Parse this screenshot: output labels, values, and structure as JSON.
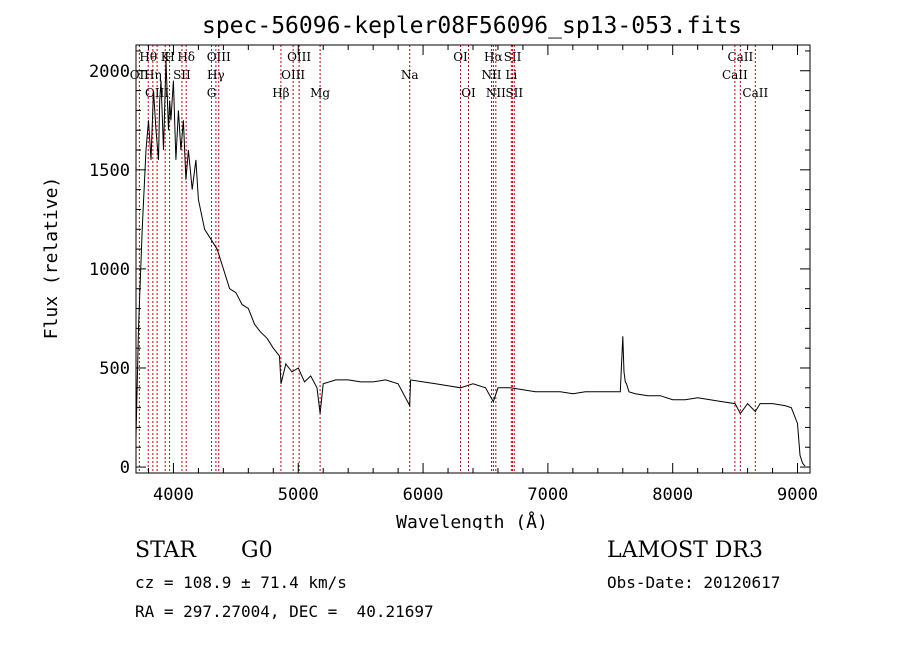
{
  "chart_data": {
    "type": "line",
    "title": "spec-56096-kepler08F56096_sp13-053.fits",
    "xlabel": "Wavelength (Å)",
    "ylabel": "Flux (relative)",
    "xlim": [
      3700,
      9100
    ],
    "ylim": [
      -30,
      2130
    ],
    "xticks": [
      4000,
      5000,
      6000,
      7000,
      8000,
      9000
    ],
    "yticks": [
      0,
      500,
      1000,
      1500,
      2000
    ],
    "line_color": "#000000",
    "marker_color": "#cc0000",
    "series": [
      {
        "name": "flux",
        "x": [
          3700,
          3720,
          3750,
          3780,
          3800,
          3820,
          3840,
          3860,
          3880,
          3890,
          3900,
          3920,
          3940,
          3960,
          3970,
          3980,
          4000,
          4020,
          4040,
          4060,
          4080,
          4100,
          4120,
          4150,
          4180,
          4200,
          4250,
          4300,
          4350,
          4400,
          4450,
          4500,
          4550,
          4600,
          4650,
          4700,
          4750,
          4800,
          4850,
          4862,
          4900,
          4950,
          5000,
          5050,
          5100,
          5150,
          5175,
          5200,
          5300,
          5400,
          5500,
          5600,
          5700,
          5800,
          5893,
          5900,
          6000,
          6100,
          6200,
          6300,
          6400,
          6500,
          6563,
          6600,
          6700,
          6800,
          6900,
          7000,
          7100,
          7200,
          7300,
          7400,
          7500,
          7580,
          7600,
          7610,
          7620,
          7630,
          7650,
          7700,
          7800,
          7900,
          8000,
          8100,
          8200,
          8300,
          8400,
          8500,
          8542,
          8600,
          8662,
          8700,
          8800,
          8900,
          8950,
          9000,
          9020,
          9040,
          9060
        ],
        "y": [
          150,
          700,
          1200,
          1600,
          1750,
          1550,
          1900,
          1700,
          1550,
          1850,
          1950,
          1600,
          2050,
          1700,
          1850,
          1750,
          1950,
          1550,
          1800,
          1600,
          1750,
          1450,
          1600,
          1400,
          1550,
          1350,
          1200,
          1150,
          1100,
          1000,
          900,
          880,
          820,
          800,
          720,
          680,
          650,
          600,
          560,
          420,
          520,
          480,
          500,
          430,
          460,
          400,
          270,
          420,
          440,
          440,
          430,
          430,
          440,
          420,
          310,
          440,
          430,
          420,
          410,
          400,
          420,
          400,
          330,
          400,
          400,
          390,
          380,
          380,
          380,
          370,
          380,
          380,
          380,
          380,
          660,
          480,
          430,
          420,
          380,
          370,
          360,
          360,
          340,
          340,
          350,
          340,
          330,
          320,
          270,
          320,
          280,
          320,
          320,
          310,
          300,
          220,
          60,
          20,
          5
        ]
      }
    ],
    "line_markers": [
      {
        "name": "Hθ",
        "wavelength": 3798,
        "row": 1
      },
      {
        "name": "OII",
        "wavelength": 3727,
        "row": 2
      },
      {
        "name": "OIII",
        "wavelength": 3869,
        "row": 3
      },
      {
        "name": "Hη",
        "wavelength": 3835,
        "row": 2
      },
      {
        "name": "K",
        "wavelength": 3934,
        "row": 1
      },
      {
        "name": "H",
        "wavelength": 3969,
        "row": 1
      },
      {
        "name": "SII",
        "wavelength": 4068,
        "row": 2
      },
      {
        "name": "Hδ",
        "wavelength": 4102,
        "row": 1
      },
      {
        "name": "OIII",
        "wavelength": 4363,
        "row": 1
      },
      {
        "name": "Hγ",
        "wavelength": 4340,
        "row": 2
      },
      {
        "name": "G",
        "wavelength": 4305,
        "row": 3
      },
      {
        "name": "Hβ",
        "wavelength": 4861,
        "row": 3
      },
      {
        "name": "OIII",
        "wavelength": 5007,
        "row": 1
      },
      {
        "name": "OIII",
        "wavelength": 4959,
        "row": 2
      },
      {
        "name": "Mg",
        "wavelength": 5175,
        "row": 3
      },
      {
        "name": "Na",
        "wavelength": 5893,
        "row": 2
      },
      {
        "name": "OI",
        "wavelength": 6300,
        "row": 1
      },
      {
        "name": "OI",
        "wavelength": 6364,
        "row": 3
      },
      {
        "name": "Hα",
        "wavelength": 6563,
        "row": 1
      },
      {
        "name": "NII",
        "wavelength": 6548,
        "row": 2
      },
      {
        "name": "NII",
        "wavelength": 6583,
        "row": 3
      },
      {
        "name": "SII",
        "wavelength": 6717,
        "row": 1
      },
      {
        "name": "Li",
        "wavelength": 6707,
        "row": 2
      },
      {
        "name": "SII",
        "wavelength": 6731,
        "row": 3
      },
      {
        "name": "CaII",
        "wavelength": 8542,
        "row": 1
      },
      {
        "name": "CaII",
        "wavelength": 8498,
        "row": 2
      },
      {
        "name": "CaII",
        "wavelength": 8662,
        "row": 3
      }
    ]
  },
  "info": {
    "class_label": "STAR",
    "subclass": "G0",
    "survey": "LAMOST DR3",
    "redshift": "cz = 108.9 ± 71.4 km/s",
    "obs_date": "Obs-Date: 20120617",
    "coords": "RA = 297.27004, DEC =  40.21697"
  }
}
